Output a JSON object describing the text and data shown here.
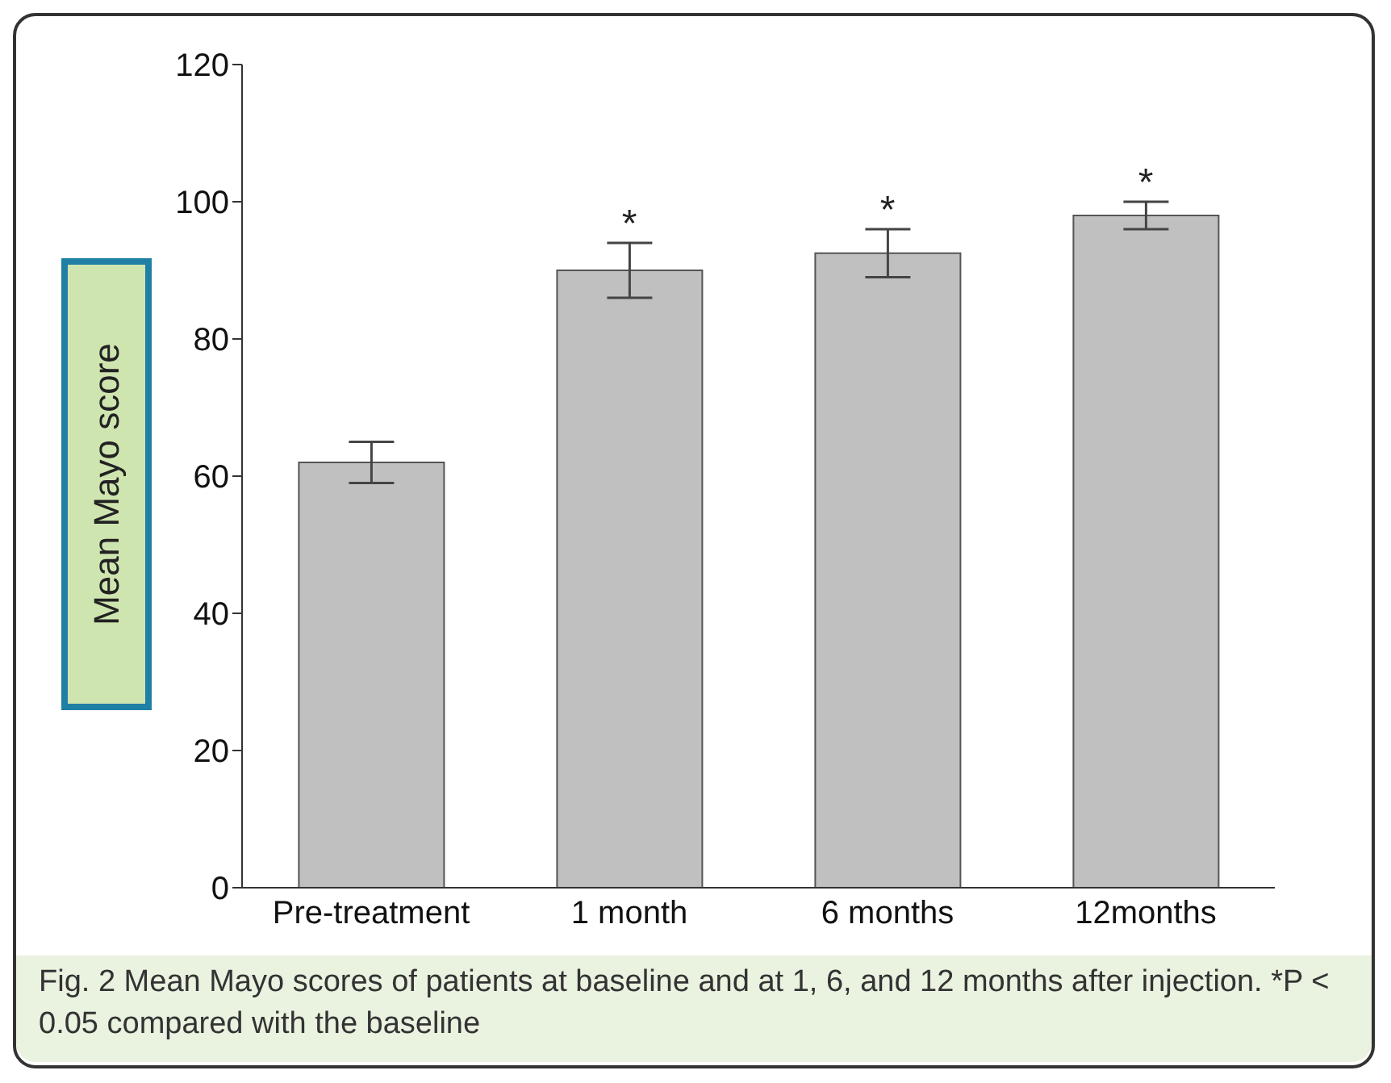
{
  "chart_data": {
    "type": "bar",
    "ylabel": "Mean Mayo score",
    "categories": [
      "Pre-treatment",
      "1 month",
      "6 months",
      "12months"
    ],
    "values": [
      62,
      90,
      92.5,
      98
    ],
    "color": "#c0c0c0",
    "errors": [
      3,
      4,
      3.5,
      2
    ],
    "ylim": [
      0,
      120
    ],
    "yticks": [
      0,
      20,
      40,
      60,
      80,
      100,
      120
    ],
    "grid": false,
    "annotations": [
      {
        "text": "*",
        "x": "1 month",
        "y": 90
      },
      {
        "text": "*",
        "x": "6 months",
        "y": 92.5
      },
      {
        "text": "*",
        "x": "12months",
        "y": 98
      },
      "Fig. 2 Mean Mayo scores of patients at baseline and at 1, 6, and 12 months after injection. *P < 0.05 compared with the baseline"
    ]
  }
}
